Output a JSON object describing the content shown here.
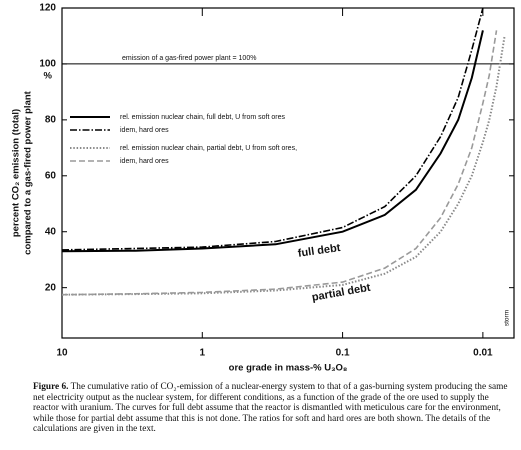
{
  "chart_data": {
    "type": "line",
    "y_label": [
      "percent CO₂ emission (total)",
      "compared to a gas-fired power plant"
    ],
    "y_unit": "%",
    "x_label": "ore grade in mass-% U₃O₈",
    "x_scale": "log",
    "x": [
      10,
      3,
      1,
      0.3,
      0.1,
      0.05,
      0.03,
      0.02,
      0.015,
      0.012,
      0.01,
      0.009,
      0.008,
      0.007
    ],
    "xlim": [
      10,
      0.006
    ],
    "xticks": [
      10,
      1,
      0.1,
      0.01
    ],
    "ylim": [
      2,
      120
    ],
    "yticks": [
      20,
      40,
      60,
      80,
      100,
      120
    ],
    "grid": false,
    "reference_line": {
      "value": 100,
      "label": "emission of a gas-fired power plant = 100%"
    },
    "series": [
      {
        "name": "rel. emission nuclear chain, full debt, U from soft ores",
        "color": "#000000",
        "style": "solid",
        "values": [
          33,
          33.2,
          34,
          35.5,
          40,
          46,
          55,
          68,
          80,
          95,
          112,
          null,
          null,
          null
        ]
      },
      {
        "name": "idem, hard ores",
        "color": "#000000",
        "style": "dashdot",
        "values": [
          33.5,
          34,
          34.5,
          36.5,
          41.5,
          49,
          60,
          74,
          88,
          105,
          120,
          null,
          null,
          null
        ]
      },
      {
        "name": "rel. emission nuclear chain, partial debt, U from soft ores,",
        "color": "#8a8a8a",
        "style": "dotted",
        "values": [
          17.5,
          17.7,
          18,
          19,
          21,
          25,
          31,
          40,
          50,
          60,
          72,
          80,
          92,
          110
        ]
      },
      {
        "name": "idem, hard ores",
        "color": "#9a9a9a",
        "style": "dashed",
        "values": [
          17.5,
          17.8,
          18.3,
          19.5,
          22,
          27,
          34,
          45,
          57,
          70,
          86,
          96,
          112,
          null
        ]
      }
    ],
    "annotations": [
      "full debt",
      "partial debt",
      "storm"
    ]
  },
  "caption": {
    "label": "Figure 6.",
    "text": "The cumulative ratio of CO₂-emission of a nuclear-energy system to that of a gas-burning system producing the same net electricity output as the nuclear system, for different conditions, as a function of the grade of the ore used to supply the reactor with uranium. The curves for full debt assume that the reactor is dismantled with meticulous care for the environment, while those for partial debt assume that this is not done. The ratios for soft and hard ores are both shown. The details of the calculations are given in the text."
  }
}
